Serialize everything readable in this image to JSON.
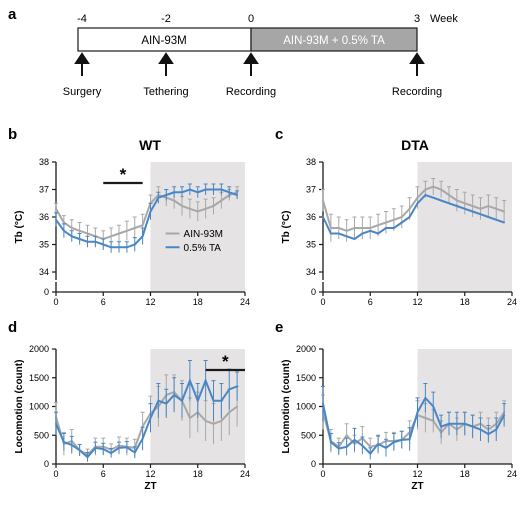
{
  "panel_labels": {
    "a": "a",
    "b": "b",
    "c": "c",
    "d": "d",
    "e": "e"
  },
  "colors": {
    "ain": "#a8a8a8",
    "ta": "#4a86c5",
    "dark": "#1a1a1a",
    "shade": "#e6e3e5",
    "box_right": "#a6a6a6"
  },
  "timeline": {
    "box_left": "AIN-93M",
    "box_right": "AIN-93M + 0.5% TA",
    "ticks": [
      "-4",
      "-2",
      "0",
      "3"
    ],
    "unit": "Week",
    "events": [
      "Surgery",
      "Tethering",
      "Recording",
      "Recording"
    ]
  },
  "chart_data": [
    {
      "id": "b",
      "type": "line",
      "title": "WT",
      "xlabel": "",
      "ylabel": "Tb (°C)",
      "xlim": [
        0,
        24
      ],
      "ylim": [
        34,
        38
      ],
      "axis_break": true,
      "xticks": [
        "0",
        "6",
        "12",
        "18",
        "24"
      ],
      "yticks": [
        "34",
        "35",
        "36",
        "37",
        "38"
      ],
      "y_break_tick": "0",
      "shaded_x": [
        12,
        24
      ],
      "significance": {
        "label": "*",
        "x_range": [
          6,
          11
        ]
      },
      "legend": {
        "position": "lower-right",
        "entries": [
          "AIN-93M",
          "0.5% TA"
        ]
      },
      "x": [
        0,
        1,
        2,
        3,
        4,
        5,
        6,
        7,
        8,
        9,
        10,
        11,
        12,
        13,
        14,
        15,
        16,
        17,
        18,
        19,
        20,
        21,
        22,
        23
      ],
      "series": [
        {
          "name": "AIN-93M",
          "color": "#a8a8a8",
          "values": [
            36.3,
            35.8,
            35.6,
            35.5,
            35.4,
            35.3,
            35.2,
            35.3,
            35.4,
            35.5,
            35.6,
            35.7,
            36.5,
            36.8,
            36.7,
            36.6,
            36.4,
            36.3,
            36.2,
            36.3,
            36.4,
            36.6,
            36.8,
            36.9
          ],
          "errors": [
            0.2,
            0.25,
            0.3,
            0.3,
            0.3,
            0.3,
            0.3,
            0.3,
            0.3,
            0.35,
            0.4,
            0.4,
            0.3,
            0.3,
            0.3,
            0.3,
            0.35,
            0.35,
            0.35,
            0.35,
            0.3,
            0.3,
            0.2,
            0.2
          ]
        },
        {
          "name": "0.5% TA",
          "color": "#4a86c5",
          "values": [
            35.9,
            35.5,
            35.3,
            35.2,
            35.1,
            35.1,
            35.0,
            34.9,
            34.9,
            34.9,
            35.0,
            35.3,
            36.2,
            36.7,
            36.8,
            36.9,
            36.9,
            37.0,
            36.9,
            37.0,
            37.0,
            37.0,
            36.9,
            36.8
          ],
          "errors": [
            0.25,
            0.25,
            0.2,
            0.2,
            0.2,
            0.2,
            0.2,
            0.2,
            0.2,
            0.2,
            0.25,
            0.3,
            0.3,
            0.2,
            0.2,
            0.2,
            0.2,
            0.2,
            0.2,
            0.2,
            0.2,
            0.2,
            0.2,
            0.15
          ]
        }
      ]
    },
    {
      "id": "c",
      "type": "line",
      "title": "DTA",
      "xlabel": "",
      "ylabel": "Tb (°C)",
      "xlim": [
        0,
        24
      ],
      "ylim": [
        34,
        38
      ],
      "axis_break": true,
      "xticks": [
        "0",
        "6",
        "12",
        "18",
        "24"
      ],
      "yticks": [
        "34",
        "35",
        "36",
        "37",
        "38"
      ],
      "y_break_tick": "0",
      "shaded_x": [
        12,
        24
      ],
      "x": [
        0,
        1,
        2,
        3,
        4,
        5,
        6,
        7,
        8,
        9,
        10,
        11,
        12,
        13,
        14,
        15,
        16,
        17,
        18,
        19,
        20,
        21,
        22,
        23
      ],
      "series": [
        {
          "name": "AIN-93M",
          "color": "#a8a8a8",
          "values": [
            36.6,
            35.6,
            35.6,
            35.5,
            35.6,
            35.6,
            35.6,
            35.7,
            35.8,
            35.9,
            36.0,
            36.3,
            36.7,
            37.0,
            37.1,
            37.0,
            36.8,
            36.6,
            36.5,
            36.4,
            36.3,
            36.4,
            36.3,
            36.2
          ],
          "errors": [
            0.4,
            0.5,
            0.4,
            0.4,
            0.4,
            0.4,
            0.4,
            0.4,
            0.4,
            0.4,
            0.4,
            0.4,
            0.4,
            0.3,
            0.3,
            0.3,
            0.3,
            0.4,
            0.4,
            0.4,
            0.4,
            0.4,
            0.4,
            0.4
          ]
        },
        {
          "name": "0.5% TA",
          "color": "#4a86c5",
          "values": [
            36.0,
            35.4,
            35.4,
            35.3,
            35.2,
            35.4,
            35.5,
            35.4,
            35.6,
            35.6,
            35.8,
            36.0,
            36.5,
            36.8,
            36.7,
            36.6,
            36.5,
            36.4,
            36.3,
            36.2,
            36.1,
            36.0,
            35.9,
            35.8
          ]
        },
        {
          "_note": ""
        }
      ]
    },
    {
      "id": "d",
      "type": "line",
      "title": "",
      "xlabel": "ZT",
      "ylabel": "Locomotion (count)",
      "xlim": [
        0,
        24
      ],
      "ylim": [
        0,
        2000
      ],
      "axis_break": false,
      "xticks": [
        "0",
        "6",
        "12",
        "18",
        "24"
      ],
      "yticks": [
        "0",
        "500",
        "1000",
        "1500",
        "2000"
      ],
      "shaded_x": [
        12,
        24
      ],
      "significance": {
        "label": "*",
        "x_range": [
          19,
          24
        ]
      },
      "x": [
        0,
        1,
        2,
        3,
        4,
        5,
        6,
        7,
        8,
        9,
        10,
        11,
        12,
        13,
        14,
        15,
        16,
        17,
        18,
        19,
        20,
        21,
        22,
        23
      ],
      "series": [
        {
          "name": "AIN-93M",
          "color": "#a8a8a8",
          "values": [
            820,
            350,
            400,
            240,
            160,
            300,
            300,
            250,
            320,
            300,
            280,
            650,
            880,
            1000,
            1200,
            1250,
            1100,
            800,
            900,
            750,
            700,
            750,
            900,
            1000
          ],
          "errors": [
            250,
            200,
            200,
            100,
            100,
            150,
            150,
            100,
            150,
            150,
            150,
            250,
            300,
            350,
            350,
            300,
            350,
            350,
            350,
            350,
            350,
            350,
            400,
            350
          ]
        },
        {
          "name": "0.5% TA",
          "color": "#4a86c5",
          "values": [
            700,
            380,
            330,
            240,
            120,
            280,
            260,
            190,
            280,
            290,
            200,
            440,
            800,
            1100,
            1050,
            1200,
            1100,
            1450,
            1100,
            1450,
            1100,
            1100,
            1300,
            1350
          ],
          "errors": [
            200,
            150,
            150,
            100,
            80,
            100,
            100,
            80,
            100,
            100,
            100,
            200,
            250,
            300,
            250,
            300,
            300,
            350,
            300,
            350,
            350,
            300,
            350,
            250
          ]
        }
      ]
    },
    {
      "id": "e",
      "type": "line",
      "title": "",
      "xlabel": "ZT",
      "ylabel": "Locomotion (count)",
      "xlim": [
        0,
        24
      ],
      "ylim": [
        0,
        2000
      ],
      "axis_break": false,
      "xticks": [
        "0",
        "6",
        "12",
        "18",
        "24"
      ],
      "yticks": [
        "0",
        "500",
        "1000",
        "1500",
        "2000"
      ],
      "shaded_x": [
        12,
        24
      ],
      "x": [
        0,
        1,
        2,
        3,
        4,
        5,
        6,
        7,
        8,
        9,
        10,
        11,
        12,
        13,
        14,
        15,
        16,
        17,
        18,
        19,
        20,
        21,
        22,
        23
      ],
      "series": [
        {
          "name": "AIN-93M",
          "color": "#a8a8a8",
          "values": [
            900,
            400,
            300,
            500,
            350,
            450,
            300,
            330,
            400,
            400,
            420,
            550,
            850,
            800,
            750,
            550,
            700,
            600,
            700,
            650,
            700,
            600,
            700,
            900
          ],
          "errors": [
            300,
            200,
            150,
            200,
            150,
            200,
            150,
            150,
            150,
            150,
            150,
            200,
            250,
            250,
            200,
            200,
            200,
            200,
            200,
            200,
            200,
            200,
            200,
            200
          ]
        },
        {
          "name": "0.5% TA",
          "color": "#4a86c5",
          "values": [
            1050,
            380,
            270,
            300,
            420,
            320,
            180,
            350,
            280,
            380,
            420,
            430,
            900,
            1150,
            1000,
            650,
            700,
            700,
            700,
            650,
            600,
            520,
            600,
            850
          ],
          "errors": [
            300,
            150,
            100,
            150,
            200,
            150,
            100,
            150,
            150,
            150,
            150,
            200,
            250,
            250,
            250,
            200,
            200,
            200,
            200,
            200,
            200,
            150,
            200,
            200
          ]
        }
      ]
    }
  ]
}
